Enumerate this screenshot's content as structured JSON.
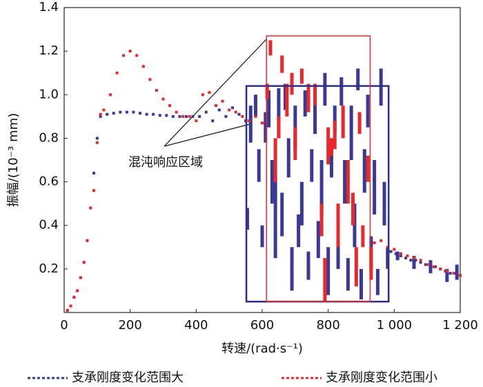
{
  "chart_data": {
    "type": "scatter",
    "x_label": "转速/(rad·s⁻¹)",
    "y_label": "振幅/(10⁻³ mm)",
    "xlim": [
      0,
      1200
    ],
    "ylim": [
      0,
      1.4
    ],
    "xticks": [
      0,
      200,
      400,
      600,
      800,
      {
        "value": 1000,
        "label": "1 000"
      },
      {
        "value": 1200,
        "label": "1 200"
      }
    ],
    "yticks": [
      0.2,
      0.4,
      0.6,
      0.8,
      {
        "value": 1,
        "label": "1.0"
      },
      1.2,
      1.4
    ],
    "annotation": "混沌响应区域",
    "boxes": [
      {
        "color": "#2e2e8a",
        "xlim": [
          552,
          983
        ],
        "ylim": [
          0.05,
          1.04
        ]
      },
      {
        "color": "#e8282b",
        "xlim": [
          613,
          927
        ],
        "ylim": [
          0.05,
          1.27
        ]
      }
    ],
    "series": [
      {
        "name": "支承刚度变化范围大",
        "color": "#3a3a96",
        "x": [
          10,
          20,
          30,
          40,
          50,
          60,
          70,
          80,
          90,
          100,
          110,
          130,
          150,
          170,
          190,
          210,
          230,
          250,
          270,
          290,
          310,
          330,
          350,
          370,
          390,
          410,
          430,
          450,
          470,
          490,
          510,
          530,
          550,
          990,
          1005,
          1020,
          1035,
          1050,
          1065,
          1080,
          1095,
          1110,
          1125,
          1140,
          1155,
          1170,
          1185,
          1200
        ],
        "values": [
          0.01,
          0.03,
          0.07,
          0.1,
          0.16,
          0.23,
          0.33,
          0.48,
          0.64,
          0.8,
          0.9,
          0.91,
          0.915,
          0.92,
          0.92,
          0.92,
          0.915,
          0.91,
          0.91,
          0.905,
          0.905,
          0.9,
          0.9,
          0.9,
          0.9,
          0.9,
          0.92,
          0.88,
          0.93,
          0.9,
          0.94,
          0.91,
          0.88,
          0.28,
          0.27,
          0.26,
          0.25,
          0.24,
          0.24,
          0.23,
          0.22,
          0.22,
          0.21,
          0.2,
          0.19,
          0.18,
          0.18,
          0.17
        ],
        "segments": [
          [
            555,
            0.38,
            0.48
          ],
          [
            565,
            0.78,
            0.95
          ],
          [
            580,
            0.9,
            1.0
          ],
          [
            590,
            0.6,
            0.75
          ],
          [
            600,
            0.3,
            0.4
          ],
          [
            610,
            0.78,
            0.92
          ],
          [
            620,
            0.85,
            1.02
          ],
          [
            630,
            0.5,
            0.7
          ],
          [
            640,
            0.25,
            0.6
          ],
          [
            650,
            0.8,
            1.03
          ],
          [
            660,
            0.35,
            0.55
          ],
          [
            670,
            0.93,
            1.05
          ],
          [
            680,
            0.62,
            0.8
          ],
          [
            690,
            0.1,
            0.3
          ],
          [
            700,
            0.75,
            0.95
          ],
          [
            710,
            0.3,
            0.45
          ],
          [
            720,
            0.4,
            0.6
          ],
          [
            730,
            0.9,
            1.02
          ],
          [
            740,
            0.15,
            0.28
          ],
          [
            750,
            0.6,
            0.75
          ],
          [
            760,
            0.82,
            1.0
          ],
          [
            770,
            0.25,
            0.42
          ],
          [
            780,
            0.45,
            0.7
          ],
          [
            790,
            0.95,
            1.1
          ],
          [
            800,
            0.08,
            0.3
          ],
          [
            810,
            0.62,
            0.8
          ],
          [
            820,
            0.82,
            0.95
          ],
          [
            830,
            0.2,
            0.35
          ],
          [
            840,
            0.95,
            1.08
          ],
          [
            850,
            0.5,
            0.7
          ],
          [
            860,
            0.1,
            0.25
          ],
          [
            870,
            0.7,
            0.95
          ],
          [
            880,
            0.3,
            0.5
          ],
          [
            890,
            1.02,
            1.12
          ],
          [
            900,
            0.06,
            0.2
          ],
          [
            910,
            0.55,
            0.75
          ],
          [
            920,
            0.85,
            1.0
          ],
          [
            930,
            0.2,
            0.35
          ],
          [
            940,
            0.45,
            0.7
          ],
          [
            950,
            0.08,
            0.2
          ],
          [
            960,
            0.95,
            1.12
          ],
          [
            970,
            0.4,
            0.6
          ],
          [
            980,
            0.2,
            0.3
          ],
          [
            1010,
            0.24,
            0.28
          ],
          [
            1060,
            0.2,
            0.26
          ],
          [
            1110,
            0.18,
            0.24
          ],
          [
            1160,
            0.14,
            0.2
          ],
          [
            1190,
            0.15,
            0.22
          ]
        ]
      },
      {
        "name": "支承刚度变化范围小",
        "color": "#e8282b",
        "x": [
          10,
          20,
          30,
          40,
          50,
          60,
          70,
          80,
          90,
          100,
          110,
          120,
          140,
          160,
          180,
          200,
          220,
          240,
          260,
          280,
          300,
          320,
          340,
          360,
          380,
          400,
          420,
          440,
          460,
          480,
          500,
          520,
          540,
          560,
          580,
          600,
          940,
          960,
          980,
          1000,
          1020,
          1040,
          1060,
          1080,
          1100,
          1120,
          1140,
          1160,
          1180,
          1200
        ],
        "values": [
          0.01,
          0.03,
          0.07,
          0.1,
          0.16,
          0.23,
          0.33,
          0.48,
          0.56,
          0.78,
          0.91,
          0.93,
          1.0,
          1.1,
          1.18,
          1.2,
          1.18,
          1.13,
          1.07,
          1.02,
          0.98,
          0.95,
          0.92,
          0.9,
          0.9,
          0.88,
          1.0,
          1.01,
          0.95,
          0.97,
          0.93,
          0.92,
          0.9,
          0.88,
          0.9,
          0.87,
          0.32,
          0.33,
          0.3,
          0.29,
          0.27,
          0.26,
          0.25,
          0.24,
          0.22,
          0.21,
          0.2,
          0.19,
          0.18,
          0.17
        ],
        "segments": [
          [
            615,
            0.98,
            1.05
          ],
          [
            625,
            1.18,
            1.25
          ],
          [
            640,
            0.6,
            0.8
          ],
          [
            650,
            0.8,
            0.9
          ],
          [
            660,
            1.1,
            1.18
          ],
          [
            675,
            0.9,
            1.05
          ],
          [
            690,
            1.0,
            1.1
          ],
          [
            700,
            0.7,
            0.85
          ],
          [
            720,
            1.05,
            1.12
          ],
          [
            740,
            0.92,
            1.05
          ],
          [
            760,
            0.95,
            1.05
          ],
          [
            780,
            0.35,
            0.5
          ],
          [
            790,
            0.05,
            0.25
          ],
          [
            800,
            0.68,
            0.85
          ],
          [
            810,
            0.72,
            0.8
          ],
          [
            820,
            0.75,
            0.88
          ],
          [
            830,
            0.3,
            0.5
          ],
          [
            845,
            0.8,
            0.95
          ],
          [
            860,
            0.5,
            0.7
          ],
          [
            875,
            0.4,
            0.55
          ],
          [
            885,
            0.12,
            0.3
          ],
          [
            895,
            0.82,
            0.92
          ],
          [
            905,
            0.3,
            0.4
          ],
          [
            920,
            0.6,
            0.72
          ],
          [
            930,
            0.15,
            0.3
          ]
        ]
      }
    ]
  }
}
